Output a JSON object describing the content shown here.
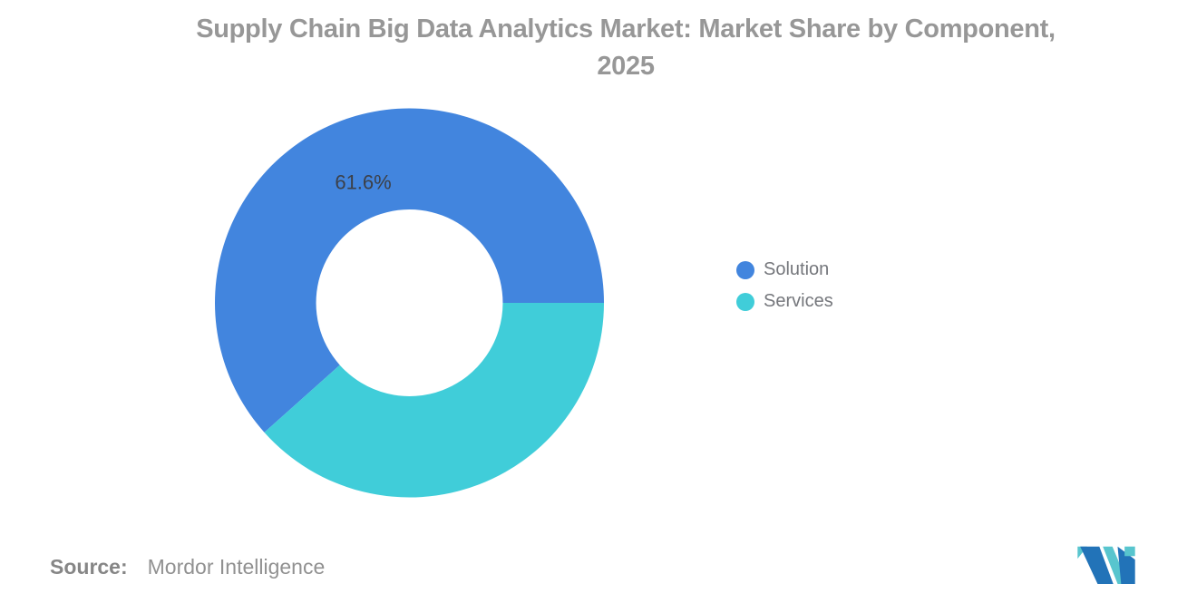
{
  "title": {
    "line1": "Supply Chain Big Data Analytics Market: Market Share by Component,",
    "line2": "2025"
  },
  "chart_data": {
    "type": "pie",
    "subtype": "donut",
    "title": "Supply Chain Big Data Analytics Market: Market Share by Component, 2025",
    "categories": [
      "Solution",
      "Services"
    ],
    "values": [
      61.6,
      38.4
    ],
    "unit": "%",
    "colors": [
      "#4285DE",
      "#40CDD9"
    ],
    "data_labels": [
      "61.6%",
      null
    ],
    "inner_radius_ratio": 0.48,
    "start_angle_deg": 0,
    "direction": "counterclockwise",
    "legend_position": "right",
    "grid": "off"
  },
  "legend": {
    "items": [
      {
        "label": "Solution",
        "color": "#4285DE"
      },
      {
        "label": "Services",
        "color": "#40CDD9"
      }
    ]
  },
  "source": {
    "label": "Source:",
    "value": "Mordor Intelligence"
  },
  "logo": {
    "name": "mordor-intelligence-logo",
    "blue": "#2273B8",
    "teal": "#58C5CE"
  },
  "palette": {
    "title_color": "#979797",
    "label_color": "#3C4048",
    "legend_text_color": "#75777C",
    "source_color": "#8C8C8C",
    "background": "#FFFFFF"
  }
}
